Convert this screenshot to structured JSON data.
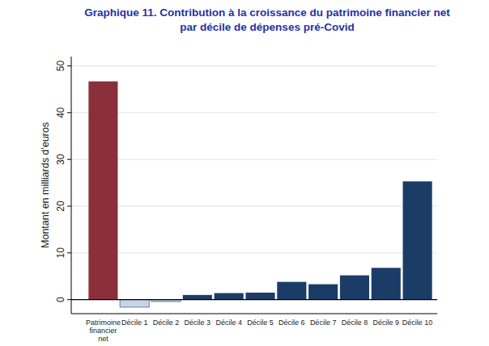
{
  "chart_data": {
    "type": "bar",
    "title": [
      "Graphique 11. Contribution à la croissance du patrimoine financier net",
      "par décile de dépenses pré-Covid"
    ],
    "y_label": "Montant en milliards d'euros",
    "categories": [
      "Patrimoine financier net",
      "Décile 1",
      "Décile 2",
      "Décile 3",
      "Décile 4",
      "Décile 5",
      "Décile 6",
      "Décile 7",
      "Décile 8",
      "Décile 9",
      "Décile 10"
    ],
    "values": [
      46.7,
      -1.6,
      -0.4,
      1.0,
      1.4,
      1.5,
      3.8,
      3.3,
      5.2,
      6.8,
      25.3
    ],
    "colors": [
      "#8b303b",
      "#c6d6ea",
      "#c6d6ea",
      "#1c3c68",
      "#1c3c68",
      "#1c3c68",
      "#1c3c68",
      "#1c3c68",
      "#1c3c68",
      "#1c3c68",
      "#1c3c68"
    ],
    "ylim": [
      -3,
      52
    ],
    "yticks": [
      0,
      10,
      20,
      30,
      40,
      50
    ],
    "grid": true
  }
}
